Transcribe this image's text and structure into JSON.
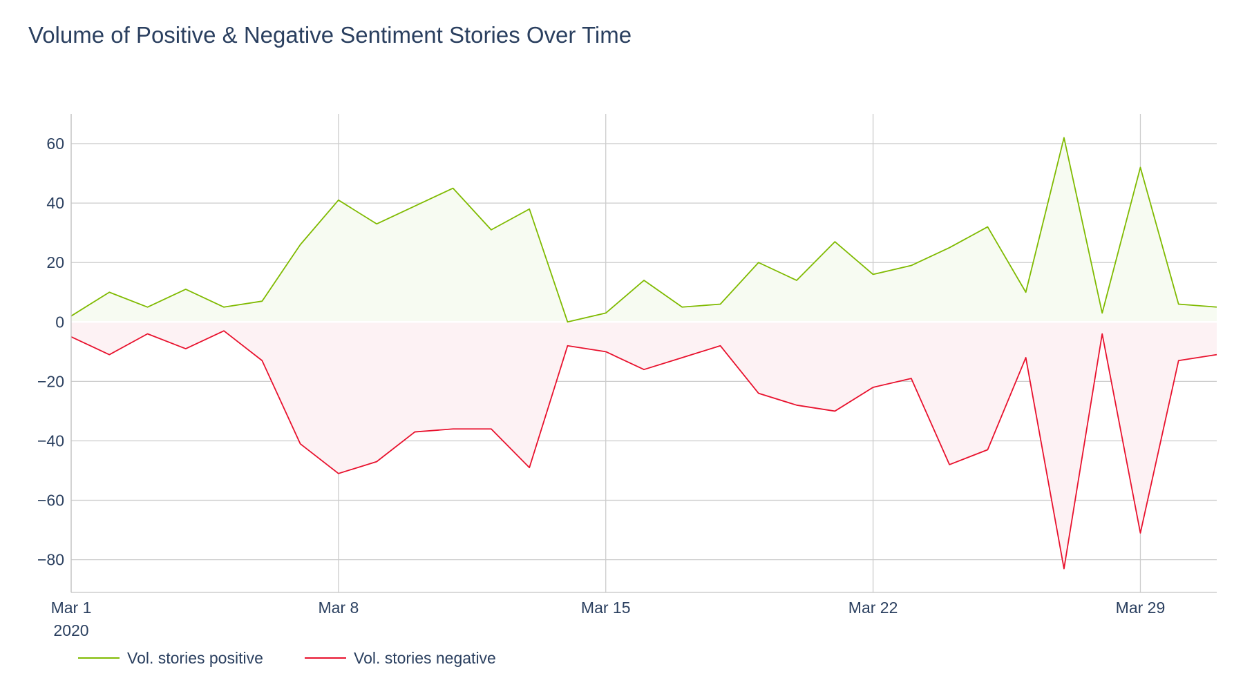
{
  "chart_data": {
    "type": "area",
    "title": "Volume of Positive & Negative Sentiment Stories Over Time",
    "xlabel": "",
    "ylabel": "",
    "x": [
      "2020-03-01",
      "2020-03-02",
      "2020-03-03",
      "2020-03-04",
      "2020-03-05",
      "2020-03-06",
      "2020-03-07",
      "2020-03-08",
      "2020-03-09",
      "2020-03-10",
      "2020-03-11",
      "2020-03-12",
      "2020-03-13",
      "2020-03-14",
      "2020-03-15",
      "2020-03-16",
      "2020-03-17",
      "2020-03-18",
      "2020-03-19",
      "2020-03-20",
      "2020-03-21",
      "2020-03-22",
      "2020-03-23",
      "2020-03-24",
      "2020-03-25",
      "2020-03-26",
      "2020-03-27",
      "2020-03-28",
      "2020-03-29",
      "2020-03-30",
      "2020-03-31"
    ],
    "series": [
      {
        "name": "Vol. stories positive",
        "color": "#7fba00",
        "fill": "#f7fbf2",
        "values": [
          2,
          10,
          5,
          11,
          5,
          7,
          26,
          41,
          33,
          39,
          45,
          31,
          38,
          0,
          3,
          14,
          5,
          6,
          20,
          14,
          27,
          16,
          19,
          25,
          32,
          10,
          62,
          3,
          52,
          6,
          5
        ]
      },
      {
        "name": "Vol. stories negative",
        "color": "#e8112d",
        "fill": "#fdf2f4",
        "values": [
          -5,
          -11,
          -4,
          -9,
          -3,
          -13,
          -41,
          -51,
          -47,
          -37,
          -36,
          -36,
          -49,
          -8,
          -10,
          -16,
          -12,
          -8,
          -24,
          -28,
          -30,
          -22,
          -19,
          -48,
          -43,
          -12,
          -83,
          -4,
          -71,
          -13,
          -11
        ]
      }
    ],
    "ylim": [
      -91,
      70
    ],
    "xlim": [
      "2020-03-01",
      "2020-03-31"
    ],
    "yticks": [
      60,
      40,
      20,
      0,
      -20,
      -40,
      -60,
      -80
    ],
    "ytick_labels": [
      "60",
      "40",
      "20",
      "0",
      "−20",
      "−40",
      "−60",
      "−80"
    ],
    "xticks": [
      {
        "date": "2020-03-01",
        "label": "Mar 1",
        "sublabel": "2020"
      },
      {
        "date": "2020-03-08",
        "label": "Mar 8",
        "sublabel": ""
      },
      {
        "date": "2020-03-15",
        "label": "Mar 15",
        "sublabel": ""
      },
      {
        "date": "2020-03-22",
        "label": "Mar 22",
        "sublabel": ""
      },
      {
        "date": "2020-03-29",
        "label": "Mar 29",
        "sublabel": ""
      }
    ],
    "grid": true,
    "legend_position": "bottom-left"
  }
}
